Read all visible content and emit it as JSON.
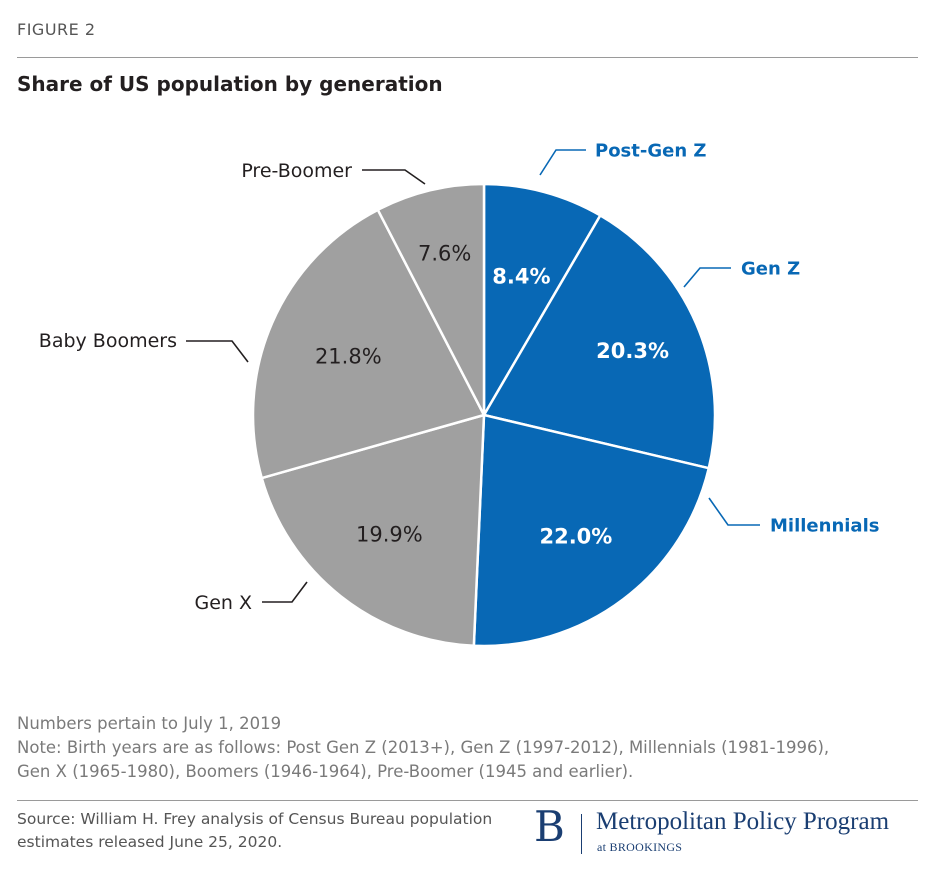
{
  "header": {
    "figure_label": "FIGURE 2"
  },
  "chart_data": {
    "type": "pie",
    "title": "Share of US population by generation",
    "unit": "%",
    "start_angle_deg": 0,
    "direction": "clockwise",
    "slices": [
      {
        "name": "Post-Gen Z",
        "value": 8.4,
        "label": "8.4%",
        "color": "#0868b5",
        "label_color": "#ffffff",
        "category_color": "#0868b5"
      },
      {
        "name": "Gen Z",
        "value": 20.3,
        "label": "20.3%",
        "color": "#0868b5",
        "label_color": "#ffffff",
        "category_color": "#0868b5"
      },
      {
        "name": "Millennials",
        "value": 22.0,
        "label": "22.0%",
        "color": "#0868b5",
        "label_color": "#ffffff",
        "category_color": "#0868b5"
      },
      {
        "name": "Gen X",
        "value": 19.9,
        "label": "19.9%",
        "color": "#a0a0a0",
        "label_color": "#231f20",
        "category_color": "#231f20"
      },
      {
        "name": "Baby Boomers",
        "value": 21.8,
        "label": "21.8%",
        "color": "#a0a0a0",
        "label_color": "#231f20",
        "category_color": "#231f20"
      },
      {
        "name": "Pre-Boomer",
        "value": 7.6,
        "label": "7.6%",
        "color": "#a0a0a0",
        "label_color": "#231f20",
        "category_color": "#231f20"
      }
    ]
  },
  "notes": {
    "line1": "Numbers pertain to July 1, 2019",
    "line2": "Note: Birth years are as follows: Post Gen Z (2013+), Gen Z (1997-2012), Millennials (1981-1996),",
    "line3": "Gen X (1965-1980), Boomers (1946-1964), Pre-Boomer (1945 and earlier)."
  },
  "source": {
    "line1": "Source: William H. Frey analysis of Census Bureau population",
    "line2": "estimates released June 25, 2020."
  },
  "logo": {
    "mark": "B",
    "program": "Metropolitan Policy Program",
    "at": "at BROOKINGS"
  }
}
